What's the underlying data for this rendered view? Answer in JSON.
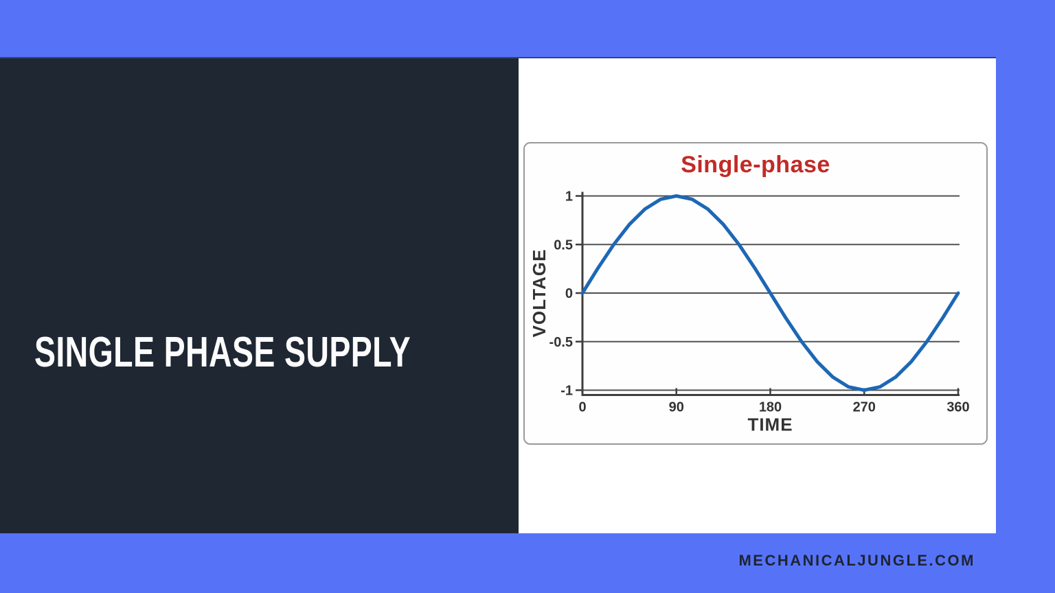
{
  "page": {
    "background_color": "#5673F8",
    "left_panel_color": "#1F2733",
    "right_panel_color": "#FFFFFF",
    "footer": {
      "site_text": "MECHANICALJUNGLE.COM",
      "footer_text_color": "#1D2433"
    }
  },
  "headline": {
    "text": "SINGLE PHASE SUPPLY",
    "color": "#FFFFFF"
  },
  "chart_data": {
    "type": "line",
    "title": "Single-phase",
    "title_color": "#C22A26",
    "xlabel": "TIME",
    "ylabel": "VOLTAGE",
    "xlim": [
      0,
      360
    ],
    "ylim": [
      -1,
      1
    ],
    "x_ticks": [
      0,
      90,
      180,
      270,
      360
    ],
    "y_ticks": [
      1,
      0.5,
      0,
      -0.5,
      -1
    ],
    "grid": "horizontal",
    "legend": "none",
    "axis_color": "#3E3E3E",
    "grid_color": "#505050",
    "series": [
      {
        "name": "single-phase",
        "color": "#1D67B5",
        "x": [
          0,
          15,
          30,
          45,
          60,
          75,
          90,
          105,
          120,
          135,
          150,
          165,
          180,
          195,
          210,
          225,
          240,
          255,
          270,
          285,
          300,
          315,
          330,
          345,
          360
        ],
        "y": [
          0,
          0.259,
          0.5,
          0.707,
          0.866,
          0.966,
          1,
          0.966,
          0.866,
          0.707,
          0.5,
          0.259,
          0,
          -0.259,
          -0.5,
          -0.707,
          -0.866,
          -0.966,
          -1,
          -0.966,
          -0.866,
          -0.707,
          -0.5,
          -0.259,
          0
        ]
      }
    ]
  }
}
